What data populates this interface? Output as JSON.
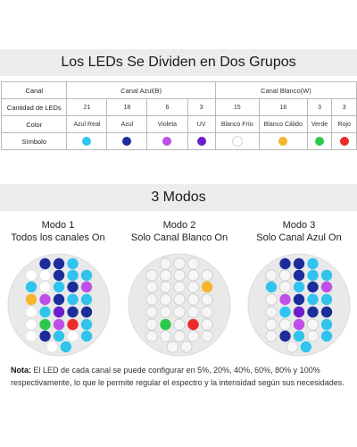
{
  "header": {
    "title": "Los LEDs Se Dividen en Dos Grupos"
  },
  "colors": {
    "cyan": "#2ec4ee",
    "blue": "#1b2d9a",
    "violet": "#c04ee8",
    "uv": "#6a1fc9",
    "cold_white": "#ffffff",
    "warm_white": "#f7b42c",
    "green": "#2cc84a",
    "red": "#ee2b2b",
    "panel_bg": "#e9e9e9",
    "off_led": "#f6f6f6"
  },
  "table": {
    "row_labels": {
      "channel": "Canal",
      "count": "Cantidad de LEDs",
      "color": "Color",
      "symbol": "Símbolo"
    },
    "groups": [
      {
        "label": "Canal Azul(B)"
      },
      {
        "label": "Canal Blanco(W)"
      }
    ],
    "columns": [
      {
        "count": "21",
        "color": "Azul Real",
        "symbol_color": "cyan"
      },
      {
        "count": "18",
        "color": "Azul",
        "symbol_color": "blue"
      },
      {
        "count": "6",
        "color": "Violeta",
        "symbol_color": "violet"
      },
      {
        "count": "3",
        "color": "UV",
        "symbol_color": "uv"
      },
      {
        "count": "15",
        "color": "Blanco Frío",
        "symbol_color": "cold_white"
      },
      {
        "count": "18",
        "color": "Blanco Cálido",
        "symbol_color": "warm_white"
      },
      {
        "count": "3",
        "color": "Verde",
        "symbol_color": "green"
      },
      {
        "count": "3",
        "color": "Rojo",
        "symbol_color": "red"
      }
    ]
  },
  "modes": {
    "title": "3 Modos",
    "items": [
      {
        "title": "Modo 1",
        "subtitle": "Todos los canales On"
      },
      {
        "title": "Modo 2",
        "subtitle": "Solo Canal Blanco On"
      },
      {
        "title": "Modo 3",
        "subtitle": "Solo Canal Azul On"
      }
    ]
  },
  "leds": {
    "mode1": [
      "blue",
      "blue",
      "cyan",
      "cold_white",
      "cold_white",
      "blue",
      "cyan",
      "cyan",
      "cyan",
      "cold_white",
      "cyan",
      "blue",
      "violet",
      "warm_white",
      "violet",
      "blue",
      "cyan",
      "cyan",
      "cold_white",
      "cyan",
      "uv",
      "blue",
      "blue",
      "cold_white",
      "green",
      "violet",
      "red",
      "cyan",
      "cold_white",
      "blue",
      "cyan",
      "cold_white",
      "cyan",
      "cold_white",
      "cyan"
    ],
    "mode2": [
      "off",
      "off",
      "off",
      "off",
      "off",
      "off",
      "off",
      "off",
      "off",
      "off",
      "off",
      "off",
      "warm_white",
      "off",
      "off",
      "off",
      "off",
      "off",
      "off",
      "off",
      "off",
      "off",
      "off",
      "off",
      "green",
      "off",
      "red",
      "off",
      "off",
      "off",
      "off",
      "off",
      "off",
      "off",
      "off"
    ],
    "mode3": [
      "blue",
      "blue",
      "cyan",
      "off",
      "off",
      "blue",
      "cyan",
      "cyan",
      "cyan",
      "off",
      "cyan",
      "blue",
      "violet",
      "off",
      "violet",
      "blue",
      "cyan",
      "cyan",
      "off",
      "cyan",
      "uv",
      "blue",
      "blue",
      "off",
      "off",
      "violet",
      "off",
      "cyan",
      "off",
      "blue",
      "cyan",
      "off",
      "cyan",
      "off",
      "cyan"
    ]
  },
  "note": {
    "label": "Nota:",
    "text": " El LED de cada canal se puede configurar en 5%, 20%, 40%, 60%, 80% y 100% respectivamente, lo que le permite regular el espectro y la intensidad según sus necesidades."
  }
}
